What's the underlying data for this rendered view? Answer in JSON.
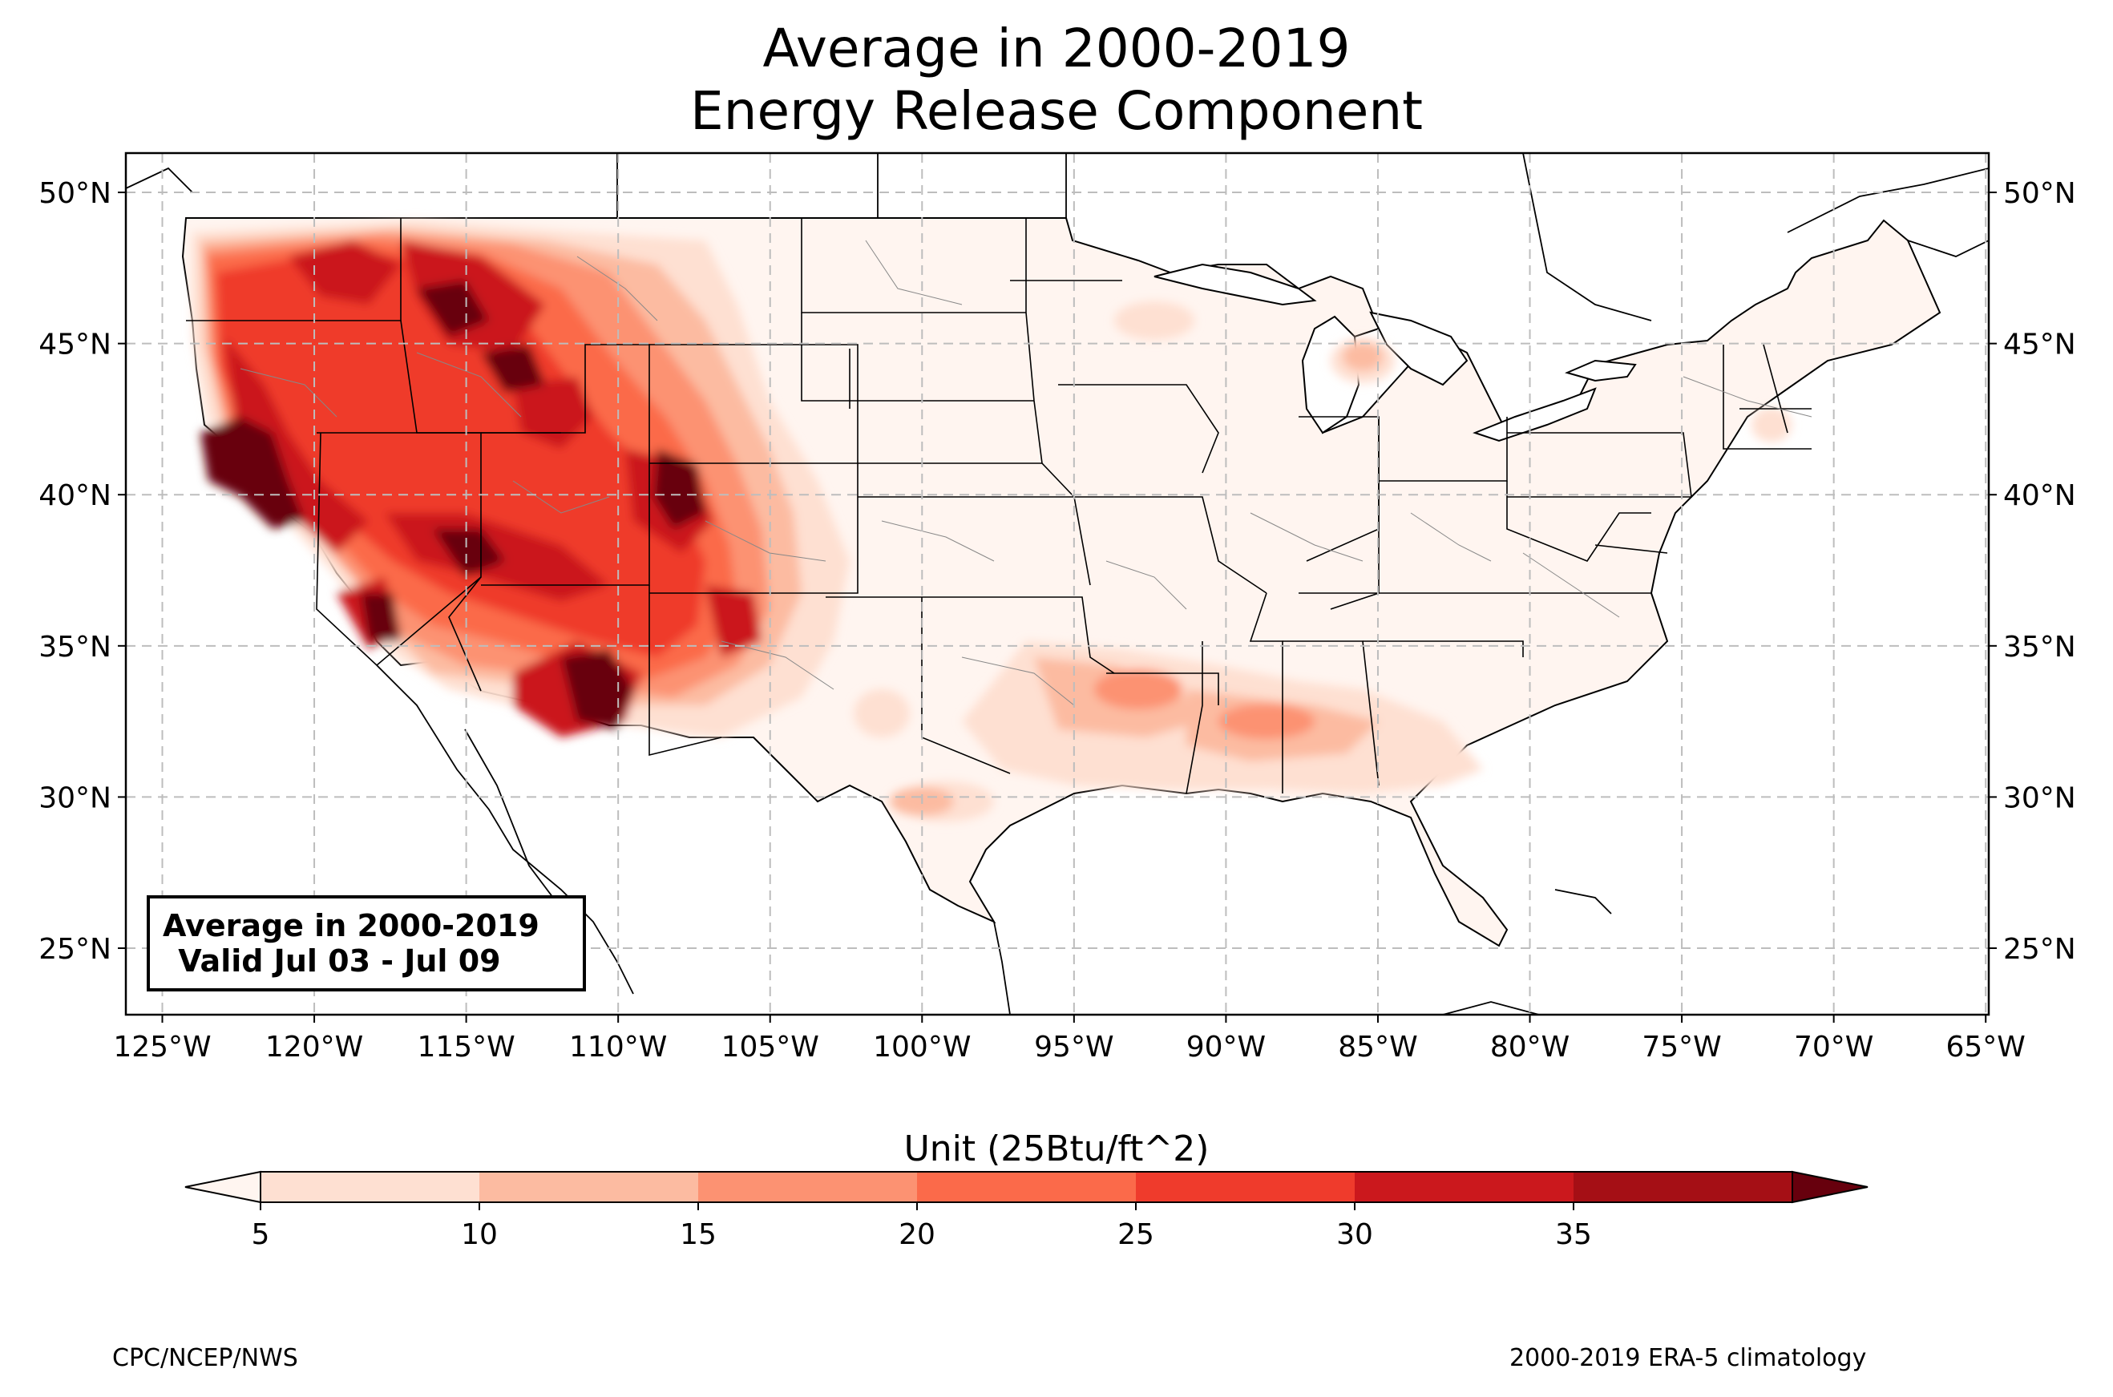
{
  "title": {
    "line1": "Average in 2000-2019",
    "line2": "Energy Release Component"
  },
  "info_box": {
    "line1": "Average in 2000-2019",
    "line2": " Valid Jul 03 - Jul 09"
  },
  "map": {
    "extent_lon": [
      -126.2,
      -64.9
    ],
    "extent_lat": [
      22.8,
      51.3
    ],
    "lon_ticks": [
      "125°W",
      "120°W",
      "115°W",
      "110°W",
      "105°W",
      "100°W",
      "95°W",
      "90°W",
      "85°W",
      "80°W",
      "75°W",
      "70°W",
      "65°W"
    ],
    "lat_ticks": [
      "25°N",
      "30°N",
      "35°N",
      "40°N",
      "45°N",
      "50°N"
    ],
    "gridlines": true
  },
  "colorbar": {
    "title": "Unit (25Btu/ft^2)",
    "levels": [
      "5",
      "10",
      "15",
      "20",
      "25",
      "30",
      "35"
    ],
    "colors": [
      "#fee0d2",
      "#fcbba1",
      "#fc9272",
      "#fb6a4a",
      "#ef3b2c",
      "#cb181d",
      "#a50f15"
    ],
    "under_color": "#fff5f0",
    "over_color": "#67000d"
  },
  "footer": {
    "left": "CPC/NCEP/NWS",
    "right": "2000-2019 ERA-5 climatology"
  }
}
